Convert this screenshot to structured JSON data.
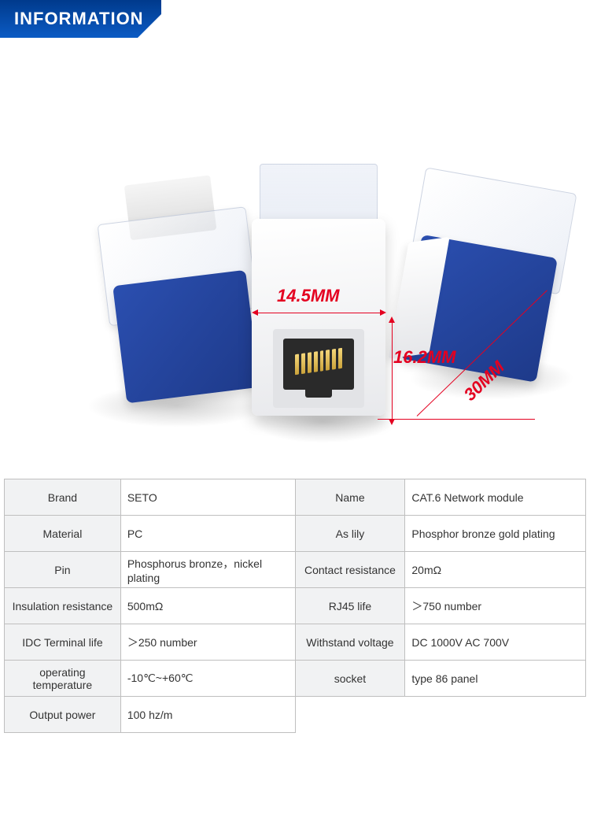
{
  "header": {
    "title": "INFORMATION"
  },
  "colors": {
    "brand_gradient_top": "#003a8c",
    "brand_gradient_bottom": "#0b5bc4",
    "accent_red": "#e40020",
    "module_blue_light": "#2b4fb0",
    "module_blue_dark": "#1e3a8a",
    "table_border": "#bfbfbf",
    "table_header_bg": "#f1f2f3",
    "text": "#333333",
    "background": "#ffffff"
  },
  "dimensions": {
    "width_label": "14.5MM",
    "height_label": "16.2MM",
    "depth_label": "30MM"
  },
  "table": {
    "rows": [
      {
        "k1": "Brand",
        "v1": "SETO",
        "k2": "Name",
        "v2": "CAT.6 Network module"
      },
      {
        "k1": "Material",
        "v1": "PC",
        "k2": "As lily",
        "v2": "Phosphor bronze gold plating"
      },
      {
        "k1": "Pin",
        "v1": "Phosphorus bronze，nickel plating",
        "k2": "Contact resistance",
        "v2": "20mΩ"
      },
      {
        "k1": "Insulation resistance",
        "v1": "500mΩ",
        "k2": "RJ45 life",
        "v2": "＞750 number"
      },
      {
        "k1": "IDC Terminal life",
        "v1": "＞250 number",
        "k2": "Withstand voltage",
        "v2": "DC 1000V AC 700V"
      },
      {
        "k1": "operating temperature",
        "v1": "-10℃~+60℃",
        "k2": "socket",
        "v2": "type 86 panel"
      },
      {
        "k1": "Output power",
        "v1": "100 hz/m",
        "k2": "",
        "v2": ""
      }
    ]
  }
}
